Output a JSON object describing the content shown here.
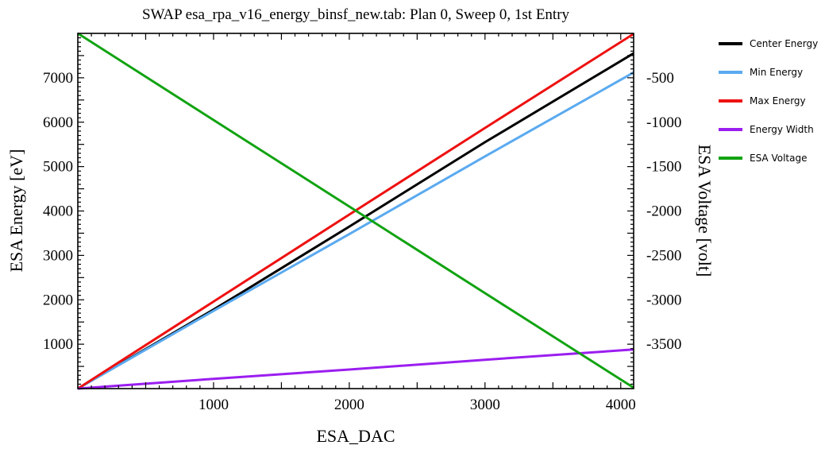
{
  "chart_data": {
    "type": "line",
    "title": "SWAP esa_rpa_v16_energy_binsf_new.tab: Plan 0, Sweep 0, 1st Entry",
    "xlabel": "ESA_DAC",
    "ylabel": "ESA Energy [eV]",
    "y2label": "ESA Voltage [volt]",
    "xlim": [
      0,
      4095
    ],
    "ylim": [
      0,
      8000
    ],
    "y2lim": [
      -4000,
      0
    ],
    "x_ticks": [
      1000,
      2000,
      3000,
      4000
    ],
    "y_ticks": [
      1000,
      2000,
      3000,
      4000,
      5000,
      6000,
      7000
    ],
    "y2_ticks": [
      -500,
      -1000,
      -1500,
      -2000,
      -2500,
      -3000,
      -3500
    ],
    "legend_position": "right",
    "series": [
      {
        "name": "Center Energy",
        "color": "#000000",
        "axis": "left",
        "x": [
          0,
          1000,
          1200,
          2000,
          3000,
          4095
        ],
        "y": [
          0,
          1780,
          2150,
          3650,
          5550,
          7550
        ]
      },
      {
        "name": "Min Energy",
        "color": "#5aaaf0",
        "axis": "left",
        "x": [
          0,
          1000,
          2000,
          3000,
          4095
        ],
        "y": [
          0,
          1750,
          3480,
          5230,
          7120
        ]
      },
      {
        "name": "Max Energy",
        "color": "#ee1111",
        "axis": "left",
        "x": [
          0,
          1000,
          2000,
          3000,
          4095
        ],
        "y": [
          0,
          1960,
          3920,
          5870,
          7990
        ]
      },
      {
        "name": "Energy Width",
        "color": "#9b1ef0",
        "axis": "left",
        "x": [
          0,
          1000,
          2000,
          3000,
          4095
        ],
        "y": [
          0,
          220,
          430,
          650,
          880
        ]
      },
      {
        "name": "ESA Voltage",
        "color": "#11a311",
        "axis": "right",
        "x": [
          0,
          1000,
          2000,
          3000,
          4095
        ],
        "y": [
          0,
          -975,
          -1950,
          -2925,
          -3990
        ]
      }
    ]
  }
}
